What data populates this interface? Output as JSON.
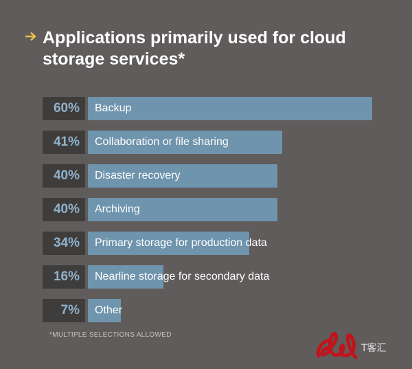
{
  "header": {
    "title": "Applications primarily used for cloud storage services*"
  },
  "chart_data": {
    "type": "bar",
    "orientation": "horizontal",
    "categories": [
      "Backup",
      "Collaboration or file sharing",
      "Disaster recovery",
      "Archiving",
      "Primary storage for production data",
      "Nearline storage for secondary data",
      "Other"
    ],
    "values": [
      60,
      41,
      40,
      40,
      34,
      16,
      7
    ],
    "value_labels": [
      "60%",
      "41%",
      "40%",
      "40%",
      "34%",
      "16%",
      "7%"
    ],
    "unit": "%",
    "xlim": [
      0,
      60
    ],
    "grid": false
  },
  "footnote": "*MULTIPLE SELECTIONS ALLOWED",
  "watermark": {
    "text": "T客汇",
    "icon": "brand-logo-icon"
  },
  "colors": {
    "background": "#5f5c5b",
    "bar": "#6f94ad",
    "percent_box": "#3f3d3c",
    "percent_text": "#8fb2cc",
    "arrow": "#e6c24a",
    "logo": "#c0141c"
  }
}
